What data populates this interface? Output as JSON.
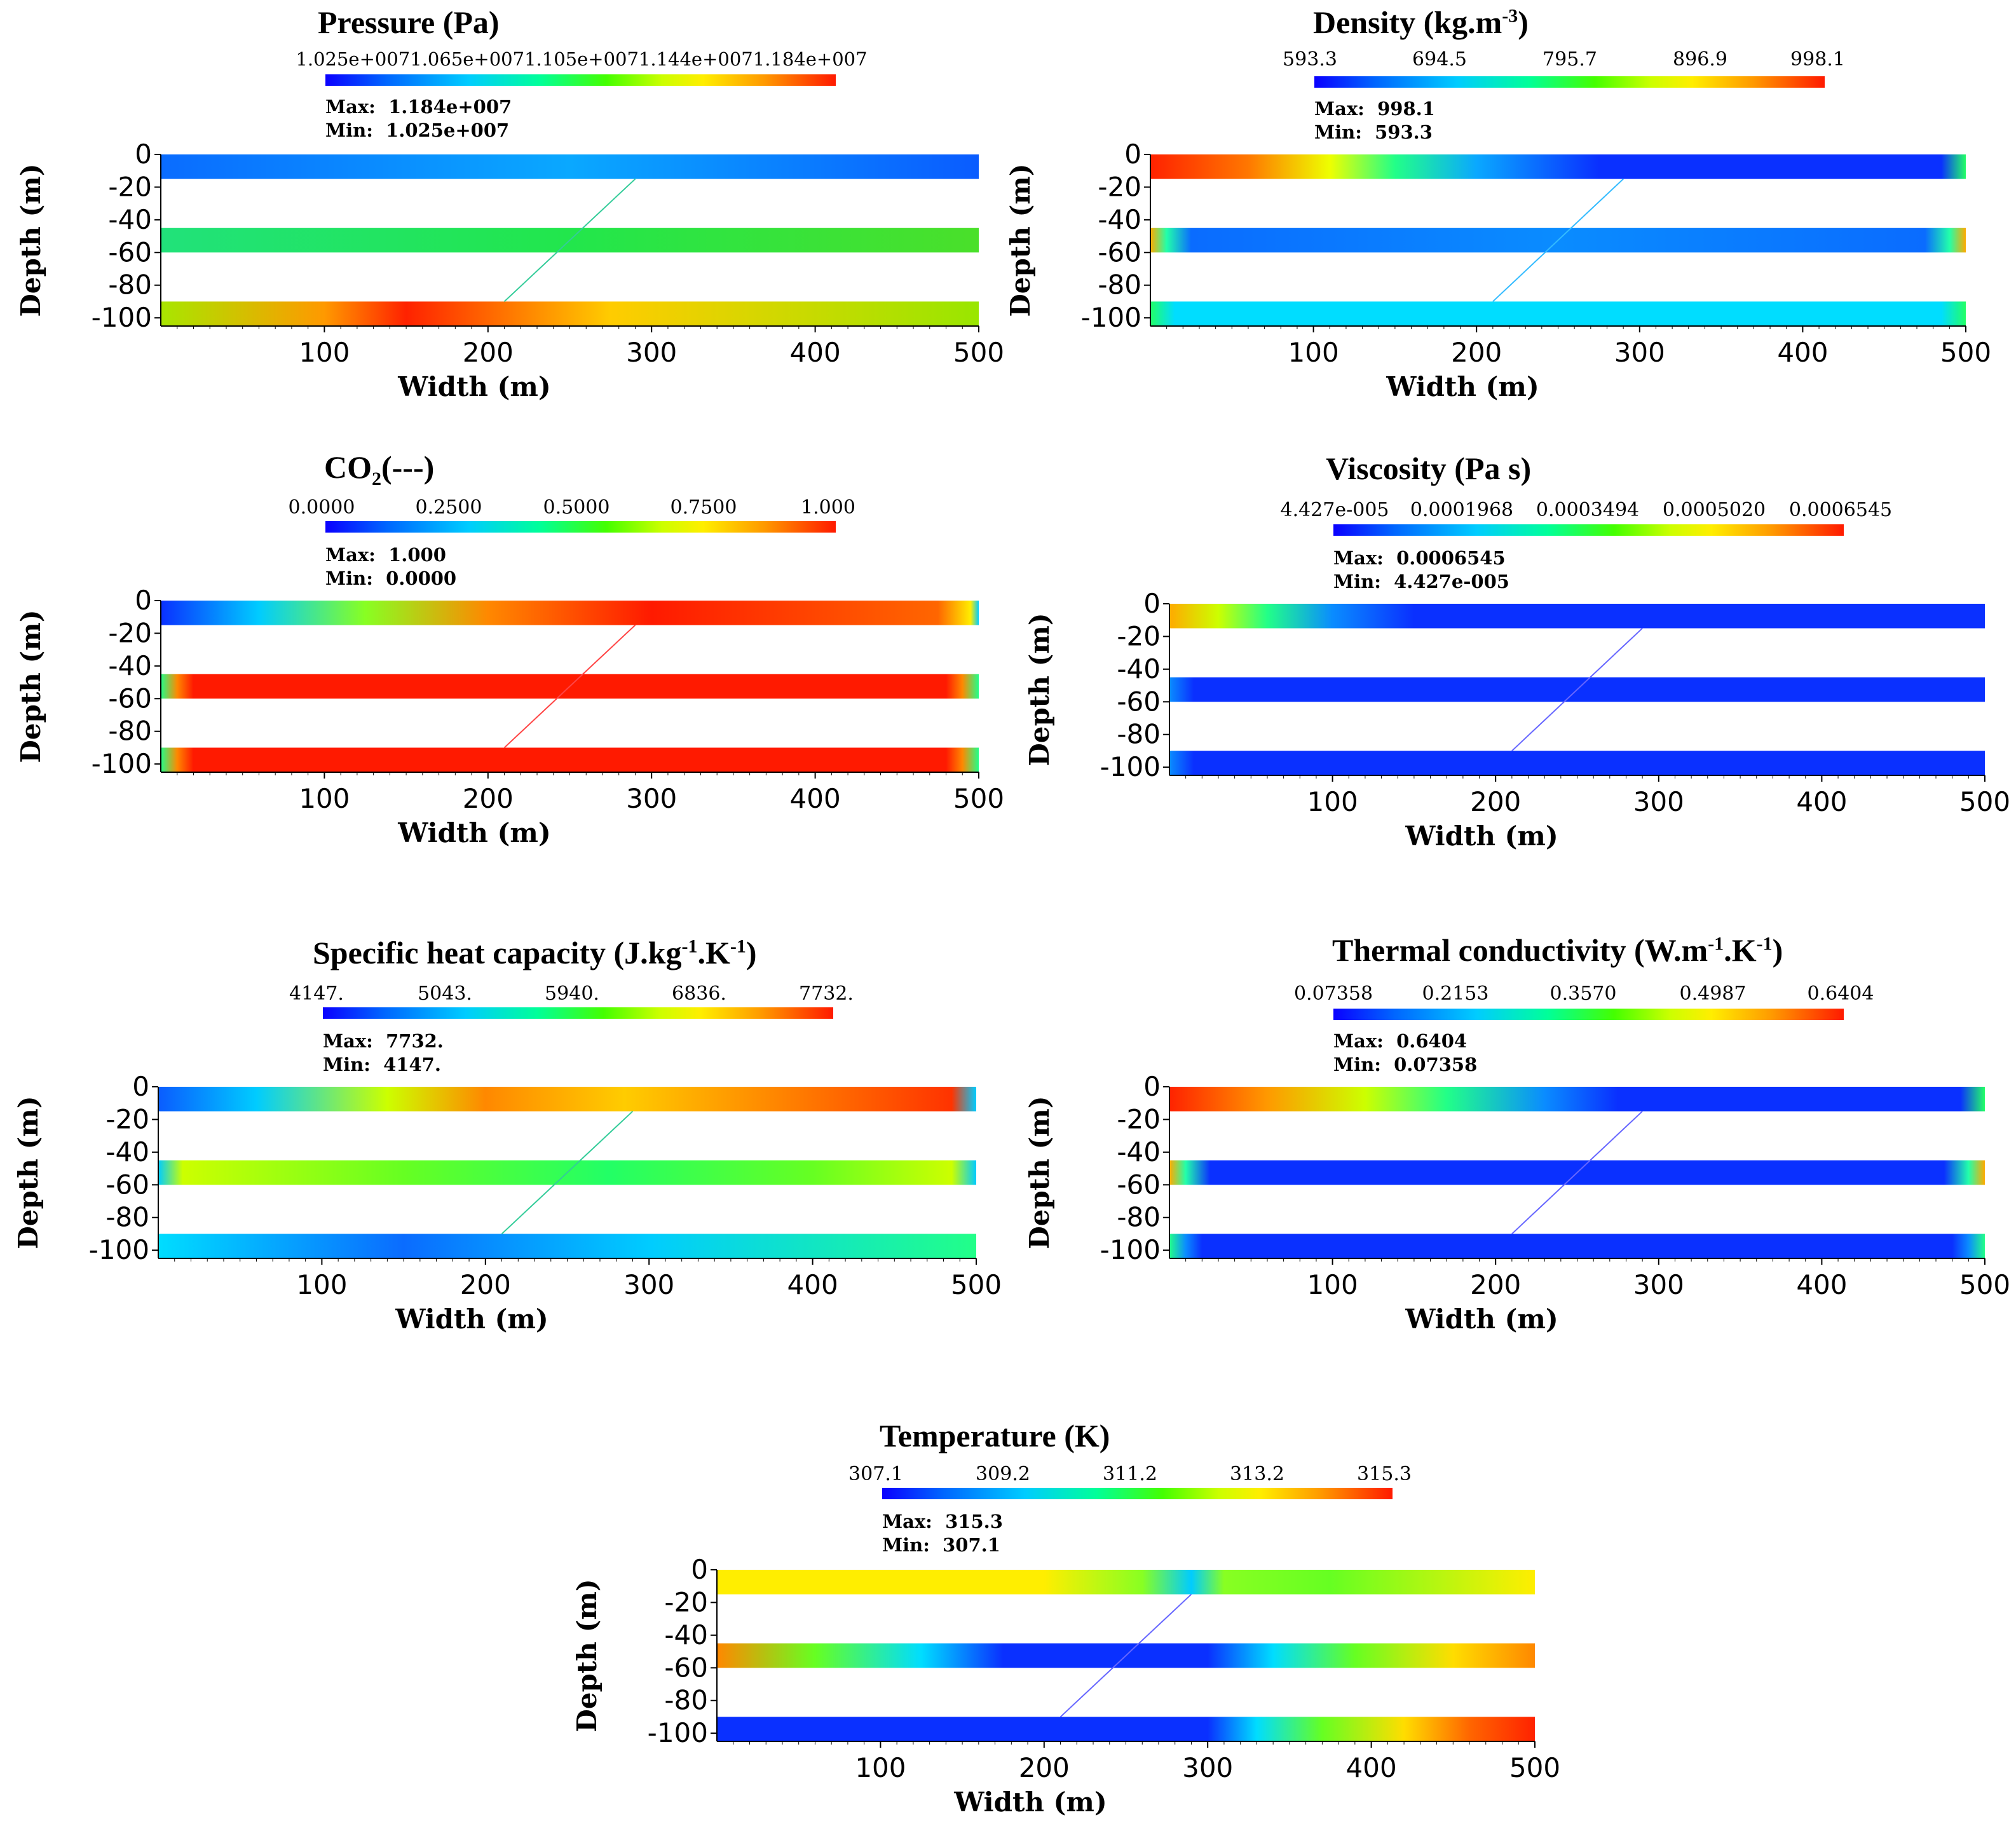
{
  "chart_data": [
    {
      "id": "pressure",
      "type": "heatmap",
      "title": "Pressure (Pa)",
      "colorbar_ticks": [
        "1.025e+007",
        "1.065e+007",
        "1.105e+007",
        "1.144e+007",
        "1.184e+007"
      ],
      "colorbar_ticks_joined": "1.025e+0071.065e+0071.105e+0071.144e+0071.184e+007",
      "max_label": "Max:",
      "max_value": "1.184e+007",
      "min_label": "Min:",
      "min_value": "1.025e+007",
      "xlabel": "Width (m)",
      "ylabel": "Depth (m)",
      "xlim": [
        0,
        500
      ],
      "ylim": [
        -105,
        0
      ],
      "x_ticks": [
        "100",
        "200",
        "300",
        "400",
        "500"
      ],
      "y_ticks": [
        "0",
        "-20",
        "-40",
        "-60",
        "-80",
        "-100"
      ],
      "layers": [
        {
          "name": "top",
          "depth_range": [
            -15,
            0
          ],
          "colors": [
            [
              "0",
              "#0a6cff"
            ],
            [
              "50",
              "#0aa8ff"
            ],
            [
              "100",
              "#0a5cff"
            ]
          ]
        },
        {
          "name": "middle",
          "depth_range": [
            -60,
            -45
          ],
          "colors": [
            [
              "0",
              "#21e27a"
            ],
            [
              "50",
              "#22e64c"
            ],
            [
              "100",
              "#4ae02a"
            ]
          ]
        },
        {
          "name": "bottom",
          "depth_range": [
            -105,
            -90
          ],
          "colors": [
            [
              "0",
              "#a8e600"
            ],
            [
              "20",
              "#ff9900"
            ],
            [
              "30",
              "#ff2200"
            ],
            [
              "55",
              "#ffcc00"
            ],
            [
              "100",
              "#99e600"
            ]
          ]
        }
      ],
      "fracture": {
        "x": [
          210,
          290
        ],
        "depth": [
          -90,
          -15
        ],
        "color": "#33cc99"
      }
    },
    {
      "id": "density",
      "type": "heatmap",
      "title": "Density (kg.m",
      "title_sup": "-3",
      "title_end": ")",
      "colorbar_ticks": [
        "593.3",
        "694.5",
        "795.7",
        "896.9",
        "998.1"
      ],
      "max_label": "Max:",
      "max_value": "998.1",
      "min_label": "Min:",
      "min_value": "593.3",
      "xlabel": "Width (m)",
      "ylabel": "Depth (m)",
      "xlim": [
        0,
        500
      ],
      "ylim": [
        -105,
        0
      ],
      "x_ticks": [
        "100",
        "200",
        "300",
        "400",
        "500"
      ],
      "y_ticks": [
        "0",
        "-20",
        "-40",
        "-60",
        "-80",
        "-100"
      ],
      "layers": [
        {
          "name": "top",
          "depth_range": [
            -15,
            0
          ],
          "colors": [
            [
              "0",
              "#ff2200"
            ],
            [
              "12",
              "#ff7700"
            ],
            [
              "22",
              "#eeff00"
            ],
            [
              "30",
              "#22ff88"
            ],
            [
              "40",
              "#0aa8ff"
            ],
            [
              "55",
              "#0a30ff"
            ],
            [
              "97",
              "#0a30ff"
            ],
            [
              "100",
              "#22ff66"
            ]
          ]
        },
        {
          "name": "middle",
          "depth_range": [
            -60,
            -45
          ],
          "colors": [
            [
              "0",
              "#ffaa00"
            ],
            [
              "2",
              "#22ffaa"
            ],
            [
              "5",
              "#0a6cff"
            ],
            [
              "50",
              "#0a8cff"
            ],
            [
              "95",
              "#0a6cff"
            ],
            [
              "98",
              "#22ffaa"
            ],
            [
              "100",
              "#ffaa00"
            ]
          ]
        },
        {
          "name": "bottom",
          "depth_range": [
            -105,
            -90
          ],
          "colors": [
            [
              "0",
              "#22ff66"
            ],
            [
              "3",
              "#00ddff"
            ],
            [
              "97",
              "#00ddff"
            ],
            [
              "100",
              "#22ff66"
            ]
          ]
        }
      ],
      "fracture": {
        "x": [
          210,
          290
        ],
        "depth": [
          -90,
          -15
        ],
        "color": "#33bbff"
      }
    },
    {
      "id": "co2",
      "type": "heatmap",
      "title": "CO",
      "title_sub": "2",
      "title_end": "(---)",
      "colorbar_ticks": [
        "0.0000",
        "0.2500",
        "0.5000",
        "0.7500",
        "1.000"
      ],
      "max_label": "Max:",
      "max_value": "1.000",
      "min_label": "Min:",
      "min_value": "0.0000",
      "xlabel": "Width (m)",
      "ylabel": "Depth (m)",
      "xlim": [
        0,
        500
      ],
      "ylim": [
        -105,
        0
      ],
      "x_ticks": [
        "100",
        "200",
        "300",
        "400",
        "500"
      ],
      "y_ticks": [
        "0",
        "-20",
        "-40",
        "-60",
        "-80",
        "-100"
      ],
      "layers": [
        {
          "name": "top",
          "depth_range": [
            -15,
            0
          ],
          "colors": [
            [
              "0",
              "#0a30ff"
            ],
            [
              "12",
              "#00ccff"
            ],
            [
              "25",
              "#88ff22"
            ],
            [
              "40",
              "#ff8800"
            ],
            [
              "60",
              "#ff1a00"
            ],
            [
              "95",
              "#ff6600"
            ],
            [
              "99",
              "#ffee00"
            ],
            [
              "100",
              "#00ccff"
            ]
          ]
        },
        {
          "name": "middle",
          "depth_range": [
            -60,
            -45
          ],
          "colors": [
            [
              "0",
              "#22ff88"
            ],
            [
              "2",
              "#ff8800"
            ],
            [
              "4",
              "#ff1a00"
            ],
            [
              "96",
              "#ff1a00"
            ],
            [
              "98",
              "#ff8800"
            ],
            [
              "100",
              "#22ff88"
            ]
          ]
        },
        {
          "name": "bottom",
          "depth_range": [
            -105,
            -90
          ],
          "colors": [
            [
              "0",
              "#22ff88"
            ],
            [
              "2",
              "#ff8800"
            ],
            [
              "4",
              "#ff1a00"
            ],
            [
              "96",
              "#ff1a00"
            ],
            [
              "98",
              "#ff8800"
            ],
            [
              "100",
              "#22ff88"
            ]
          ]
        }
      ],
      "fracture": {
        "x": [
          210,
          290
        ],
        "depth": [
          -90,
          -15
        ],
        "color": "#ff4444"
      }
    },
    {
      "id": "viscosity",
      "type": "heatmap",
      "title": "Viscosity (Pa s)",
      "colorbar_ticks": [
        "4.427e-005",
        "0.0001968",
        "0.0003494",
        "0.0005020",
        "0.0006545"
      ],
      "max_label": "Max:",
      "max_value": "0.0006545",
      "min_label": "Min:",
      "min_value": "4.427e-005",
      "xlabel": "Width (m)",
      "ylabel": "Depth (m)",
      "xlim": [
        0,
        500
      ],
      "ylim": [
        -105,
        0
      ],
      "x_ticks": [
        "100",
        "200",
        "300",
        "400",
        "500"
      ],
      "y_ticks": [
        "0",
        "-20",
        "-40",
        "-60",
        "-80",
        "-100"
      ],
      "layers": [
        {
          "name": "top",
          "depth_range": [
            -15,
            0
          ],
          "colors": [
            [
              "0",
              "#ffaa00"
            ],
            [
              "6",
              "#ccff00"
            ],
            [
              "12",
              "#22ff88"
            ],
            [
              "20",
              "#0a8cff"
            ],
            [
              "30",
              "#0a30ff"
            ],
            [
              "100",
              "#0a30ff"
            ]
          ]
        },
        {
          "name": "middle",
          "depth_range": [
            -60,
            -45
          ],
          "colors": [
            [
              "0",
              "#0a8cff"
            ],
            [
              "3",
              "#0a30ff"
            ],
            [
              "100",
              "#0a30ff"
            ]
          ]
        },
        {
          "name": "bottom",
          "depth_range": [
            -105,
            -90
          ],
          "colors": [
            [
              "0",
              "#0a8cff"
            ],
            [
              "3",
              "#0a30ff"
            ],
            [
              "100",
              "#0a30ff"
            ]
          ]
        }
      ],
      "fracture": {
        "x": [
          210,
          290
        ],
        "depth": [
          -90,
          -15
        ],
        "color": "#6666ff"
      }
    },
    {
      "id": "heat_capacity",
      "type": "heatmap",
      "title": "Specific heat capacity (J.kg",
      "title_sup": "-1",
      "title_mid": ".K",
      "title_sup2": "-1",
      "title_end": ")",
      "colorbar_ticks": [
        "4147.",
        "5043.",
        "5940.",
        "6836.",
        "7732."
      ],
      "max_label": "Max:",
      "max_value": "7732.",
      "min_label": "Min:",
      "min_value": "4147.",
      "xlabel": "Width (m)",
      "ylabel": "Depth (m)",
      "xlim": [
        0,
        500
      ],
      "ylim": [
        -105,
        0
      ],
      "x_ticks": [
        "100",
        "200",
        "300",
        "400",
        "500"
      ],
      "y_ticks": [
        "0",
        "-20",
        "-40",
        "-60",
        "-80",
        "-100"
      ],
      "layers": [
        {
          "name": "top",
          "depth_range": [
            -15,
            0
          ],
          "colors": [
            [
              "0",
              "#0a5cff"
            ],
            [
              "12",
              "#00ccff"
            ],
            [
              "28",
              "#ccff00"
            ],
            [
              "40",
              "#ff8800"
            ],
            [
              "57",
              "#ffcc00"
            ],
            [
              "75",
              "#ff8800"
            ],
            [
              "97",
              "#ff3300"
            ],
            [
              "100",
              "#00ccff"
            ]
          ]
        },
        {
          "name": "middle",
          "depth_range": [
            -60,
            -45
          ],
          "colors": [
            [
              "0",
              "#00ccff"
            ],
            [
              "3",
              "#ccff00"
            ],
            [
              "30",
              "#66ff22"
            ],
            [
              "55",
              "#22ff66"
            ],
            [
              "80",
              "#66ff22"
            ],
            [
              "97",
              "#ccff00"
            ],
            [
              "100",
              "#00ccff"
            ]
          ]
        },
        {
          "name": "bottom",
          "depth_range": [
            -105,
            -90
          ],
          "colors": [
            [
              "0",
              "#00ddff"
            ],
            [
              "30",
              "#0a6cff"
            ],
            [
              "60",
              "#00ccff"
            ],
            [
              "100",
              "#22ff88"
            ]
          ]
        }
      ],
      "fracture": {
        "x": [
          210,
          290
        ],
        "depth": [
          -90,
          -15
        ],
        "color": "#33cc99"
      }
    },
    {
      "id": "thermal_conductivity",
      "type": "heatmap",
      "title": "Thermal conductivity (W.m",
      "title_sup": "-1",
      "title_mid": ".K",
      "title_sup2": "-1",
      "title_end": ")",
      "colorbar_ticks": [
        "0.07358",
        "0.2153",
        "0.3570",
        "0.4987",
        "0.6404"
      ],
      "max_label": "Max:",
      "max_value": "0.6404",
      "min_label": "Min:",
      "min_value": "0.07358",
      "xlabel": "Width (m)",
      "ylabel": "Depth (m)",
      "xlim": [
        0,
        500
      ],
      "ylim": [
        -105,
        0
      ],
      "x_ticks": [
        "100",
        "200",
        "300",
        "400",
        "500"
      ],
      "y_ticks": [
        "0",
        "-20",
        "-40",
        "-60",
        "-80",
        "-100"
      ],
      "layers": [
        {
          "name": "top",
          "depth_range": [
            -15,
            0
          ],
          "colors": [
            [
              "0",
              "#ff2200"
            ],
            [
              "12",
              "#ff9900"
            ],
            [
              "24",
              "#ccff00"
            ],
            [
              "34",
              "#22ff88"
            ],
            [
              "46",
              "#0a8cff"
            ],
            [
              "55",
              "#0a30ff"
            ],
            [
              "97",
              "#0a30ff"
            ],
            [
              "100",
              "#22ff66"
            ]
          ]
        },
        {
          "name": "middle",
          "depth_range": [
            -60,
            -45
          ],
          "colors": [
            [
              "0",
              "#ffaa00"
            ],
            [
              "2",
              "#22ffaa"
            ],
            [
              "5",
              "#0a30ff"
            ],
            [
              "95",
              "#0a30ff"
            ],
            [
              "98",
              "#22ffaa"
            ],
            [
              "100",
              "#ffaa00"
            ]
          ]
        },
        {
          "name": "bottom",
          "depth_range": [
            -105,
            -90
          ],
          "colors": [
            [
              "0",
              "#22ff88"
            ],
            [
              "2",
              "#0a8cff"
            ],
            [
              "4",
              "#0a30ff"
            ],
            [
              "96",
              "#0a30ff"
            ],
            [
              "98",
              "#0a8cff"
            ],
            [
              "100",
              "#22ff88"
            ]
          ]
        }
      ],
      "fracture": {
        "x": [
          210,
          290
        ],
        "depth": [
          -90,
          -15
        ],
        "color": "#6666ff"
      }
    },
    {
      "id": "temperature",
      "type": "heatmap",
      "title": "Temperature (K)",
      "colorbar_ticks": [
        "307.1",
        "309.2",
        "311.2",
        "313.2",
        "315.3"
      ],
      "max_label": "Max:",
      "max_value": "315.3",
      "min_label": "Min:",
      "min_value": "307.1",
      "xlabel": "Width (m)",
      "ylabel": "Depth (m)",
      "xlim": [
        0,
        500
      ],
      "ylim": [
        -105,
        0
      ],
      "x_ticks": [
        "100",
        "200",
        "300",
        "400",
        "500"
      ],
      "y_ticks": [
        "0",
        "-20",
        "-40",
        "-60",
        "-80",
        "-100"
      ],
      "layers": [
        {
          "name": "top",
          "depth_range": [
            -15,
            0
          ],
          "colors": [
            [
              "0",
              "#ffee00"
            ],
            [
              "40",
              "#ffee00"
            ],
            [
              "52",
              "#88ff22"
            ],
            [
              "58",
              "#00ccff"
            ],
            [
              "62",
              "#88ff22"
            ],
            [
              "75",
              "#66ff22"
            ],
            [
              "100",
              "#ffee00"
            ]
          ]
        },
        {
          "name": "middle",
          "depth_range": [
            -60,
            -45
          ],
          "colors": [
            [
              "0",
              "#ff8800"
            ],
            [
              "12",
              "#66ff22"
            ],
            [
              "25",
              "#00ddff"
            ],
            [
              "35",
              "#0a30ff"
            ],
            [
              "60",
              "#0a30ff"
            ],
            [
              "68",
              "#00ddff"
            ],
            [
              "78",
              "#66ff22"
            ],
            [
              "90",
              "#ffdd00"
            ],
            [
              "100",
              "#ff8800"
            ]
          ]
        },
        {
          "name": "bottom",
          "depth_range": [
            -105,
            -90
          ],
          "colors": [
            [
              "0",
              "#0a30ff"
            ],
            [
              "60",
              "#0a30ff"
            ],
            [
              "66",
              "#00ddff"
            ],
            [
              "74",
              "#66ff22"
            ],
            [
              "84",
              "#ffdd00"
            ],
            [
              "92",
              "#ff6600"
            ],
            [
              "100",
              "#ff2200"
            ]
          ]
        }
      ],
      "fracture": {
        "x": [
          210,
          290
        ],
        "depth": [
          -90,
          -15
        ],
        "color": "#6666ff"
      }
    }
  ]
}
